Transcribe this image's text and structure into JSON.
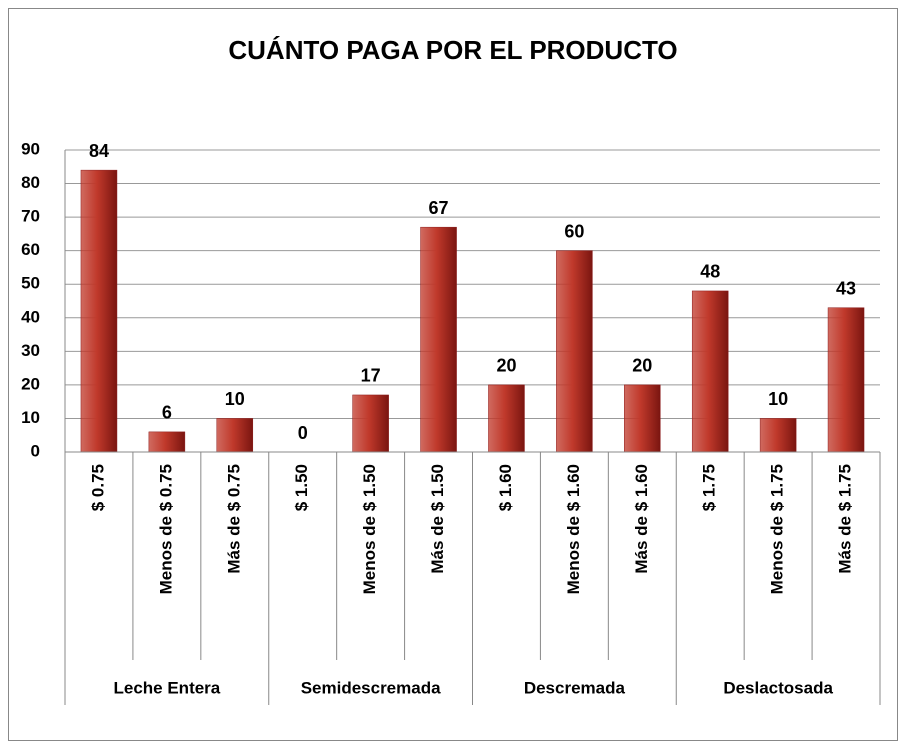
{
  "chart_data": {
    "type": "bar",
    "title": "CUÁNTO PAGA POR EL PRODUCTO",
    "groups": [
      {
        "name": "Leche Entera",
        "categories": [
          "$ 0.75",
          "Menos de $ 0.75",
          "Más de $ 0.75"
        ],
        "values": [
          84,
          6,
          10
        ]
      },
      {
        "name": "Semidescremada",
        "categories": [
          "$ 1.50",
          "Menos de $ 1.50",
          "Más de $ 1.50"
        ],
        "values": [
          0,
          17,
          67
        ]
      },
      {
        "name": "Descremada",
        "categories": [
          "$ 1.60",
          "Menos de $ 1.60",
          "Más de $ 1.60"
        ],
        "values": [
          20,
          60,
          20
        ]
      },
      {
        "name": "Deslactosada",
        "categories": [
          "$ 1.75",
          "Menos de $ 1.75",
          "Más de $ 1.75"
        ],
        "values": [
          48,
          10,
          43
        ]
      }
    ],
    "color": "#c0392b",
    "ylim": [
      0,
      90
    ],
    "yticks": [
      0,
      10,
      20,
      30,
      40,
      50,
      60,
      70,
      80,
      90
    ],
    "grid": true
  }
}
